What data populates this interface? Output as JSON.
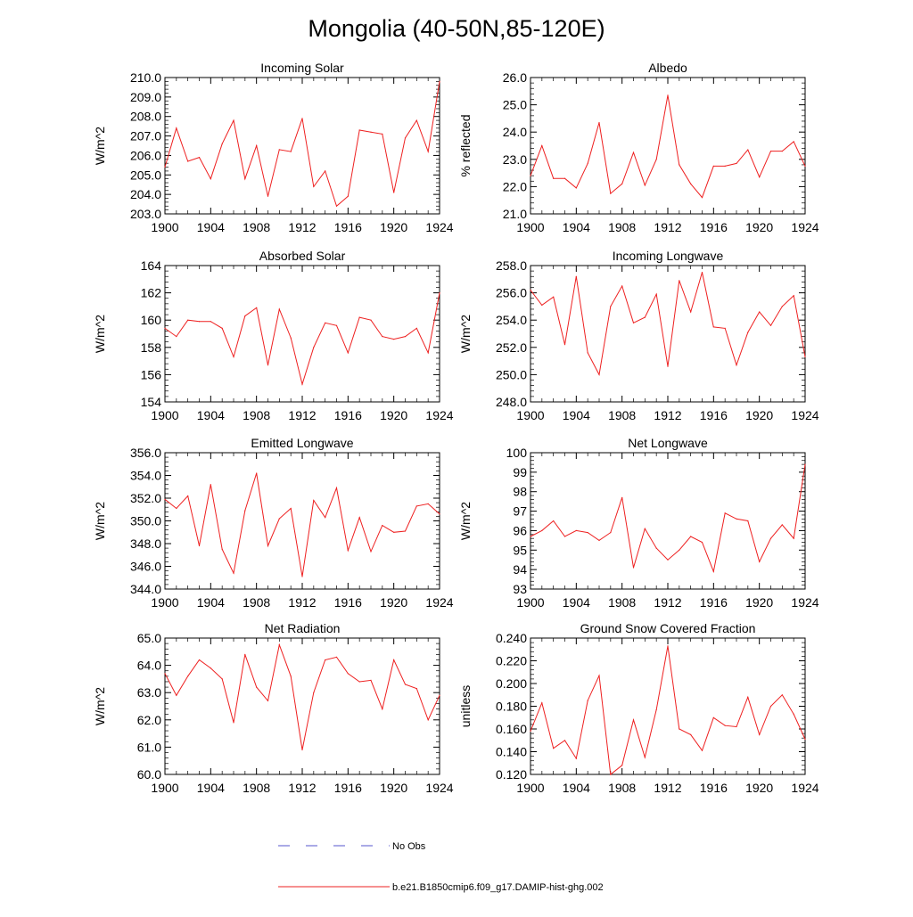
{
  "title": "Mongolia (40-50N,85-120E)",
  "legend": {
    "obs_label": "No Obs",
    "obs_color": "#5555cc",
    "model_label": "b.e21.B1850cmip6.f09_g17.DAMIP-hist-ghg.002",
    "model_color": "#ee2020"
  },
  "chart_data": [
    {
      "type": "line",
      "title": "Incoming Solar",
      "ylabel": "W/m^2",
      "xlim": [
        1900,
        1924
      ],
      "ylim": [
        203,
        210
      ],
      "xticks": [
        "1900",
        "1904",
        "1908",
        "1912",
        "1916",
        "1920",
        "1924"
      ],
      "yticks": [
        "203.0",
        "204.0",
        "205.0",
        "206.0",
        "207.0",
        "208.0",
        "209.0",
        "210.0"
      ],
      "x": [
        1900,
        1901,
        1902,
        1903,
        1904,
        1905,
        1906,
        1907,
        1908,
        1909,
        1910,
        1911,
        1912,
        1913,
        1914,
        1915,
        1916,
        1917,
        1918,
        1919,
        1920,
        1921,
        1922,
        1923,
        1924
      ],
      "series": [
        {
          "values": [
            205.4,
            207.4,
            205.7,
            205.9,
            204.8,
            206.6,
            207.8,
            204.8,
            206.5,
            203.9,
            206.3,
            206.2,
            207.9,
            204.4,
            205.2,
            203.4,
            203.9,
            207.3,
            207.2,
            207.1,
            204.1,
            206.9,
            207.8,
            206.2,
            209.8
          ]
        }
      ]
    },
    {
      "type": "line",
      "title": "Albedo",
      "ylabel": "% reflected",
      "xlim": [
        1900,
        1924
      ],
      "ylim": [
        21,
        26
      ],
      "xticks": [
        "1900",
        "1904",
        "1908",
        "1912",
        "1916",
        "1920",
        "1924"
      ],
      "yticks": [
        "21.0",
        "22.0",
        "23.0",
        "24.0",
        "25.0",
        "26.0"
      ],
      "x": [
        1900,
        1901,
        1902,
        1903,
        1904,
        1905,
        1906,
        1907,
        1908,
        1909,
        1910,
        1911,
        1912,
        1913,
        1914,
        1915,
        1916,
        1917,
        1918,
        1919,
        1920,
        1921,
        1922,
        1923,
        1924
      ],
      "series": [
        {
          "values": [
            22.4,
            23.5,
            22.3,
            22.3,
            21.95,
            22.85,
            24.35,
            21.75,
            22.1,
            23.25,
            22.05,
            23.0,
            25.35,
            22.8,
            22.1,
            21.6,
            22.75,
            22.75,
            22.85,
            23.35,
            22.35,
            23.3,
            23.3,
            23.65,
            22.75
          ]
        }
      ]
    },
    {
      "type": "line",
      "title": "Absorbed Solar",
      "ylabel": "W/m^2",
      "xlim": [
        1900,
        1924
      ],
      "ylim": [
        154,
        164
      ],
      "xticks": [
        "1900",
        "1904",
        "1908",
        "1912",
        "1916",
        "1920",
        "1924"
      ],
      "yticks": [
        "154",
        "156",
        "158",
        "160",
        "162",
        "164"
      ],
      "x": [
        1900,
        1901,
        1902,
        1903,
        1904,
        1905,
        1906,
        1907,
        1908,
        1909,
        1910,
        1911,
        1912,
        1913,
        1914,
        1915,
        1916,
        1917,
        1918,
        1919,
        1920,
        1921,
        1922,
        1923,
        1924
      ],
      "series": [
        {
          "values": [
            159.4,
            158.8,
            160.0,
            159.9,
            159.9,
            159.4,
            157.3,
            160.3,
            160.9,
            156.7,
            160.8,
            158.7,
            155.3,
            158.0,
            159.8,
            159.6,
            157.6,
            160.2,
            160.0,
            158.8,
            158.6,
            158.8,
            159.4,
            157.6,
            162.0
          ]
        }
      ]
    },
    {
      "type": "line",
      "title": "Incoming Longwave",
      "ylabel": "W/m^2",
      "xlim": [
        1900,
        1924
      ],
      "ylim": [
        248,
        258
      ],
      "xticks": [
        "1900",
        "1904",
        "1908",
        "1912",
        "1916",
        "1920",
        "1924"
      ],
      "yticks": [
        "248.0",
        "250.0",
        "252.0",
        "254.0",
        "256.0",
        "258.0"
      ],
      "x": [
        1900,
        1901,
        1902,
        1903,
        1904,
        1905,
        1906,
        1907,
        1908,
        1909,
        1910,
        1911,
        1912,
        1913,
        1914,
        1915,
        1916,
        1917,
        1918,
        1919,
        1920,
        1921,
        1922,
        1923,
        1924
      ],
      "series": [
        {
          "values": [
            256.2,
            255.1,
            255.7,
            252.2,
            257.2,
            251.6,
            250.0,
            255.0,
            256.5,
            253.8,
            254.2,
            255.9,
            250.6,
            256.9,
            254.6,
            257.5,
            253.5,
            253.4,
            250.7,
            253.1,
            254.6,
            253.6,
            255.0,
            255.8,
            251.3
          ]
        }
      ]
    },
    {
      "type": "line",
      "title": "Emitted Longwave",
      "ylabel": "W/m^2",
      "xlim": [
        1900,
        1924
      ],
      "ylim": [
        344,
        356
      ],
      "xticks": [
        "1900",
        "1904",
        "1908",
        "1912",
        "1916",
        "1920",
        "1924"
      ],
      "yticks": [
        "344.0",
        "346.0",
        "348.0",
        "350.0",
        "352.0",
        "354.0",
        "356.0"
      ],
      "x": [
        1900,
        1901,
        1902,
        1903,
        1904,
        1905,
        1906,
        1907,
        1908,
        1909,
        1910,
        1911,
        1912,
        1913,
        1914,
        1915,
        1916,
        1917,
        1918,
        1919,
        1920,
        1921,
        1922,
        1923,
        1924
      ],
      "series": [
        {
          "values": [
            351.9,
            351.1,
            352.2,
            347.8,
            353.2,
            347.5,
            345.4,
            350.9,
            354.2,
            347.8,
            350.2,
            351.1,
            345.1,
            351.8,
            350.3,
            352.9,
            347.4,
            350.3,
            347.3,
            349.6,
            349.0,
            349.1,
            351.3,
            351.5,
            350.6
          ]
        }
      ]
    },
    {
      "type": "line",
      "title": "Net Longwave",
      "ylabel": "W/m^2",
      "xlim": [
        1900,
        1924
      ],
      "ylim": [
        93,
        100
      ],
      "xticks": [
        "1900",
        "1904",
        "1908",
        "1912",
        "1916",
        "1920",
        "1924"
      ],
      "yticks": [
        "93",
        "94",
        "95",
        "96",
        "97",
        "98",
        "99",
        "100"
      ],
      "x": [
        1900,
        1901,
        1902,
        1903,
        1904,
        1905,
        1906,
        1907,
        1908,
        1909,
        1910,
        1911,
        1912,
        1913,
        1914,
        1915,
        1916,
        1917,
        1918,
        1919,
        1920,
        1921,
        1922,
        1923,
        1924
      ],
      "series": [
        {
          "values": [
            95.7,
            96.0,
            96.5,
            95.7,
            96.0,
            95.9,
            95.5,
            95.9,
            97.7,
            94.1,
            96.1,
            95.1,
            94.5,
            95.0,
            95.7,
            95.4,
            93.9,
            96.9,
            96.6,
            96.5,
            94.4,
            95.6,
            96.3,
            95.6,
            99.4
          ]
        }
      ]
    },
    {
      "type": "line",
      "title": "Net Radiation",
      "ylabel": "W/m^2",
      "xlim": [
        1900,
        1924
      ],
      "ylim": [
        60,
        65
      ],
      "xticks": [
        "1900",
        "1904",
        "1908",
        "1912",
        "1916",
        "1920",
        "1924"
      ],
      "yticks": [
        "60.0",
        "61.0",
        "62.0",
        "63.0",
        "64.0",
        "65.0"
      ],
      "x": [
        1900,
        1901,
        1902,
        1903,
        1904,
        1905,
        1906,
        1907,
        1908,
        1909,
        1910,
        1911,
        1912,
        1913,
        1914,
        1915,
        1916,
        1917,
        1918,
        1919,
        1920,
        1921,
        1922,
        1923,
        1924
      ],
      "series": [
        {
          "values": [
            63.7,
            62.9,
            63.6,
            64.2,
            63.9,
            63.5,
            61.9,
            64.4,
            63.2,
            62.7,
            64.75,
            63.6,
            60.9,
            63.0,
            64.2,
            64.3,
            63.7,
            63.4,
            63.45,
            62.4,
            64.2,
            63.3,
            63.15,
            62.0,
            62.9
          ]
        }
      ]
    },
    {
      "type": "line",
      "title": "Ground Snow Covered Fraction",
      "ylabel": "unitless",
      "xlim": [
        1900,
        1924
      ],
      "ylim": [
        0.12,
        0.24
      ],
      "xticks": [
        "1900",
        "1904",
        "1908",
        "1912",
        "1916",
        "1920",
        "1924"
      ],
      "yticks": [
        "0.120",
        "0.140",
        "0.160",
        "0.180",
        "0.200",
        "0.220",
        "0.240"
      ],
      "x": [
        1900,
        1901,
        1902,
        1903,
        1904,
        1905,
        1906,
        1907,
        1908,
        1909,
        1910,
        1911,
        1912,
        1913,
        1914,
        1915,
        1916,
        1917,
        1918,
        1919,
        1920,
        1921,
        1922,
        1923,
        1924
      ],
      "series": [
        {
          "values": [
            0.158,
            0.183,
            0.143,
            0.15,
            0.134,
            0.185,
            0.207,
            0.12,
            0.128,
            0.168,
            0.135,
            0.177,
            0.233,
            0.16,
            0.155,
            0.141,
            0.17,
            0.163,
            0.162,
            0.188,
            0.155,
            0.18,
            0.19,
            0.173,
            0.151
          ]
        }
      ]
    }
  ]
}
